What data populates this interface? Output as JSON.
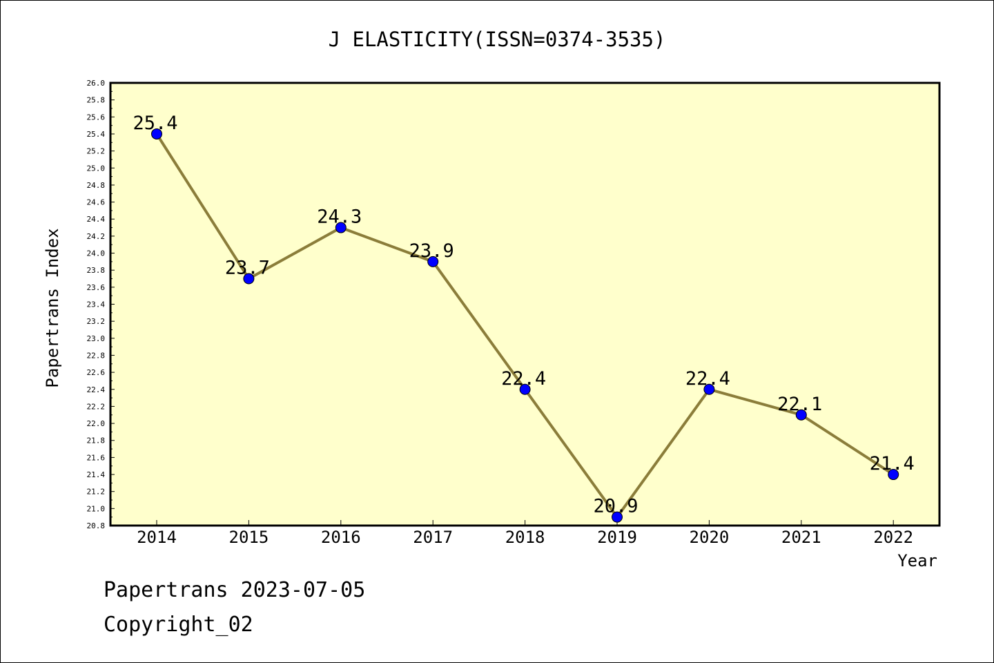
{
  "chart_data": {
    "type": "line",
    "title": "J ELASTICITY(ISSN=0374-3535)",
    "xlabel": "Year",
    "ylabel": "Papertrans Index",
    "categories": [
      "2014",
      "2015",
      "2016",
      "2017",
      "2018",
      "2019",
      "2020",
      "2021",
      "2022"
    ],
    "series": [
      {
        "values": [
          25.4,
          23.7,
          24.3,
          23.9,
          22.4,
          20.9,
          22.4,
          22.1,
          21.4
        ]
      }
    ],
    "data_labels": [
      "25.4",
      "23.7",
      "24.3",
      "23.9",
      "22.4",
      "20.9",
      "22.4",
      "22.1",
      "21.4"
    ],
    "ylim": [
      20.8,
      26.0
    ],
    "yticks": [
      "20.8",
      "21.0",
      "21.2",
      "21.4",
      "21.6",
      "21.8",
      "22.0",
      "22.2",
      "22.4",
      "22.6",
      "22.8",
      "23.0",
      "23.2",
      "23.4",
      "23.6",
      "23.8",
      "24.0",
      "24.2",
      "24.4",
      "24.6",
      "24.8",
      "25.0",
      "25.2",
      "25.4",
      "25.6",
      "25.8",
      "26.0"
    ],
    "grid": false,
    "colors": {
      "plot_background": "#ffffcc",
      "line": "#8b7d3a",
      "marker": "#0000ff"
    }
  },
  "footer": {
    "line1": "Papertrans 2023-07-05",
    "line2": "Copyright_02"
  }
}
